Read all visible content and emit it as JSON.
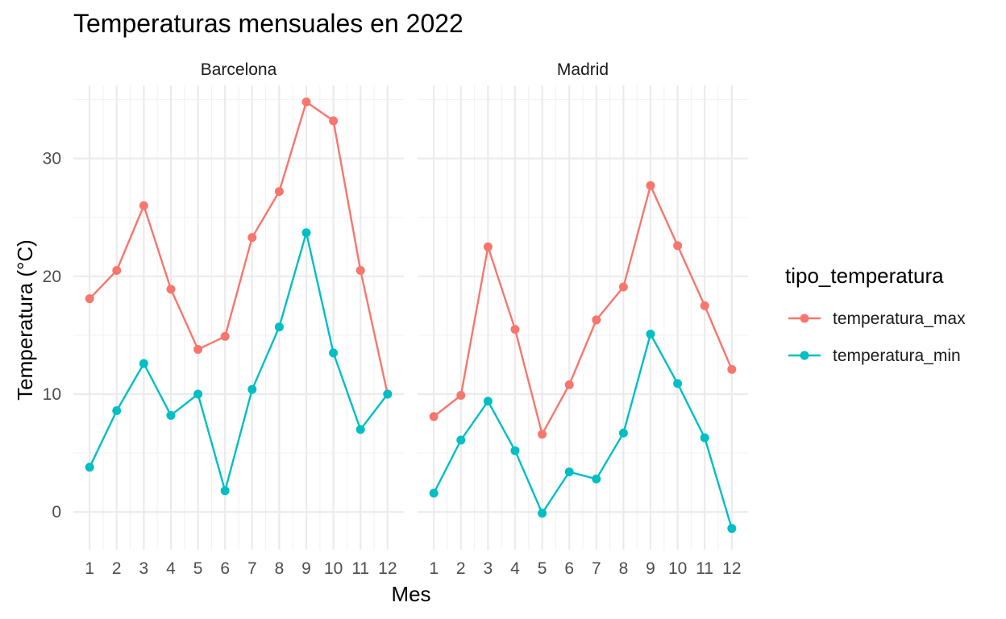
{
  "chart_data": {
    "type": "line",
    "title": "Temperaturas mensuales en 2022",
    "xlabel": "Mes",
    "ylabel": "Temperatura (°C)",
    "categories": [
      1,
      2,
      3,
      4,
      5,
      6,
      7,
      8,
      9,
      10,
      11,
      12
    ],
    "ylim": [
      -3.2,
      36.2
    ],
    "y_ticks": [
      0,
      10,
      20,
      30
    ],
    "grid": true,
    "legend": {
      "title": "tipo_temperatura",
      "position": "right",
      "entries": [
        {
          "name": "temperatura_max",
          "color": "#F8766D"
        },
        {
          "name": "temperatura_min",
          "color": "#00BFC4"
        }
      ]
    },
    "facets": [
      {
        "label": "Barcelona",
        "series": [
          {
            "name": "temperatura_max",
            "color": "#F8766D",
            "values": [
              18.1,
              20.5,
              26.0,
              18.9,
              13.8,
              14.9,
              23.3,
              27.2,
              34.8,
              33.2,
              20.5,
              10.0
            ]
          },
          {
            "name": "temperatura_min",
            "color": "#00BFC4",
            "values": [
              3.8,
              8.6,
              12.6,
              8.2,
              10.0,
              1.8,
              10.4,
              15.7,
              23.7,
              13.5,
              7.0,
              10.0
            ]
          }
        ]
      },
      {
        "label": "Madrid",
        "series": [
          {
            "name": "temperatura_max",
            "color": "#F8766D",
            "values": [
              8.1,
              9.9,
              22.5,
              15.5,
              6.6,
              10.8,
              16.3,
              19.1,
              27.7,
              22.6,
              17.5,
              12.1
            ]
          },
          {
            "name": "temperatura_min",
            "color": "#00BFC4",
            "values": [
              1.6,
              6.1,
              9.4,
              5.2,
              -0.1,
              3.4,
              2.8,
              6.7,
              15.1,
              10.9,
              6.3,
              -1.4
            ]
          }
        ]
      }
    ]
  }
}
